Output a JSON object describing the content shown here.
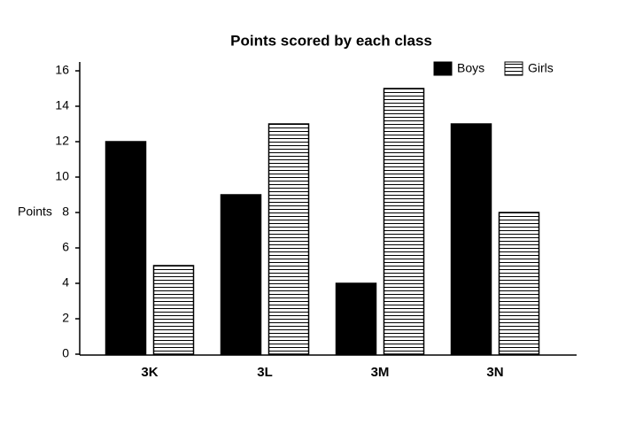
{
  "chart_data": {
    "type": "bar",
    "title": "Points scored by each class",
    "y_label": "Points",
    "categories": [
      "3K",
      "3L",
      "3M",
      "3N"
    ],
    "series": [
      {
        "name": "Boys",
        "color": "#000000",
        "values": [
          12,
          9,
          4,
          13
        ]
      },
      {
        "name": "Girls",
        "color": "#ffffff",
        "hatch": "horizontal",
        "values": [
          5,
          13,
          15,
          8
        ]
      }
    ],
    "ylim": [
      0,
      16
    ],
    "yticks": [
      0,
      2,
      4,
      6,
      8,
      10,
      12,
      14,
      16
    ],
    "grid": false,
    "legend": "top-right"
  }
}
